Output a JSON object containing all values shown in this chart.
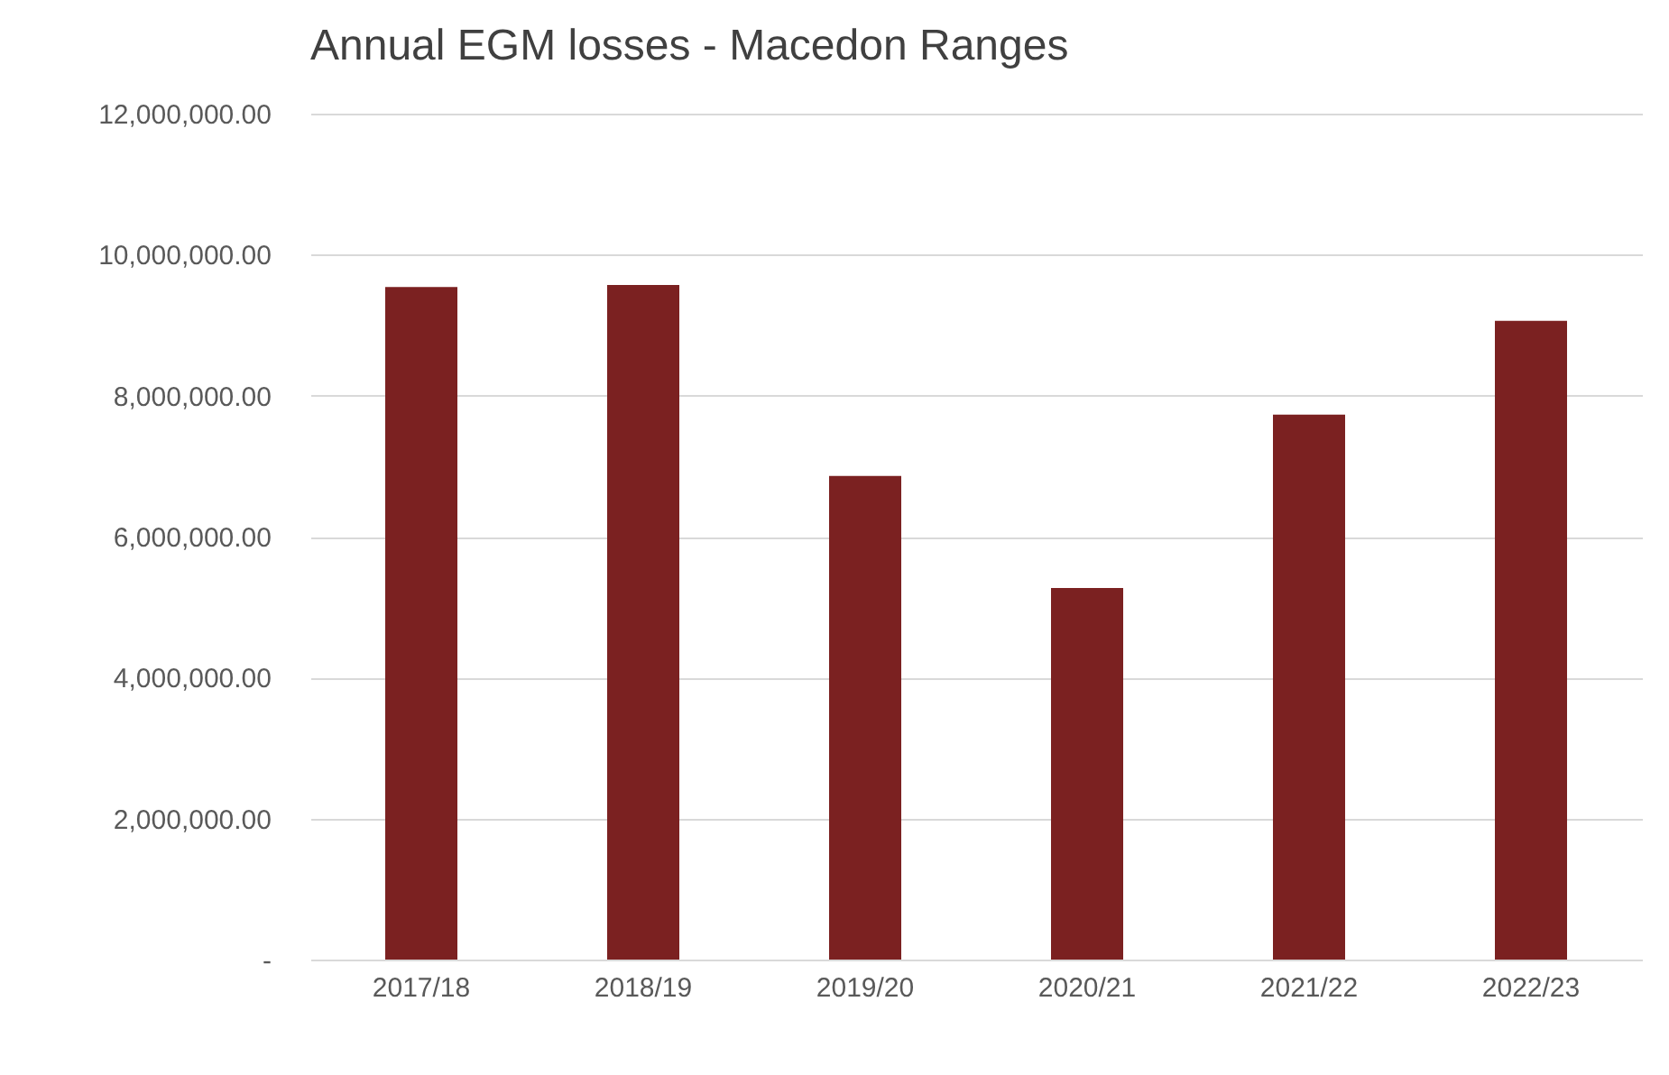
{
  "chart_data": {
    "type": "bar",
    "title": "Annual EGM losses - Macedon Ranges",
    "categories": [
      "2017/18",
      "2018/19",
      "2019/20",
      "2020/21",
      "2021/22",
      "2022/23"
    ],
    "values": [
      9540000,
      9570000,
      6860000,
      5270000,
      7730000,
      9060000
    ],
    "color": "#7b2121",
    "ylim": [
      0,
      12000000
    ],
    "yticks": [
      {
        "value": 0,
        "label": "-"
      },
      {
        "value": 2000000,
        "label": "2,000,000.00"
      },
      {
        "value": 4000000,
        "label": "4,000,000.00"
      },
      {
        "value": 6000000,
        "label": "6,000,000.00"
      },
      {
        "value": 8000000,
        "label": "8,000,000.00"
      },
      {
        "value": 10000000,
        "label": "10,000,000.00"
      },
      {
        "value": 12000000,
        "label": "12,000,000.00"
      }
    ],
    "grid": "y"
  }
}
